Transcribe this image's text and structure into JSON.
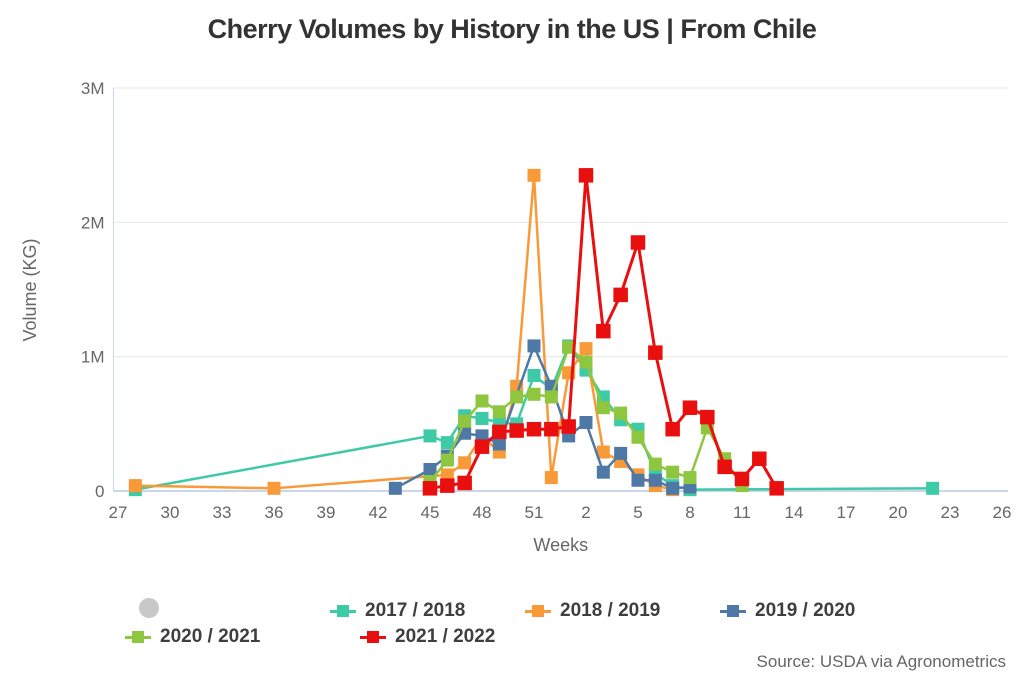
{
  "title": "Cherry Volumes by History in the US | From Chile",
  "source": "Source: USDA via Agronometrics",
  "colors": {
    "grid": "#e6e6e6",
    "axis_line": "#ccd6eb",
    "tick_text": "#666666",
    "title_text": "#333333",
    "legend_text": "#3f3f3f",
    "legend_placeholder": "#c8c8c8"
  },
  "chart_data": {
    "type": "line",
    "title": "Cherry Volumes by History in the US | From Chile",
    "xlabel": "Weeks",
    "ylabel": "Volume (KG)",
    "ylim": [
      0,
      3000000
    ],
    "grid": "horizontal",
    "legend_position": "bottom",
    "x_axis_week_order_start": 27,
    "x_tick_labels": [
      "27",
      "30",
      "33",
      "36",
      "39",
      "42",
      "45",
      "48",
      "51",
      "2",
      "5",
      "8",
      "11",
      "14",
      "17",
      "20",
      "23",
      "26"
    ],
    "y_ticks": [
      {
        "value": 0,
        "label": "0"
      },
      {
        "value": 1000000,
        "label": "1M"
      },
      {
        "value": 2000000,
        "label": "2M"
      },
      {
        "value": 3000000,
        "label": "3M"
      }
    ],
    "legend_placeholder": {
      "label": "",
      "shape": "circle",
      "color": "#c8c8c8"
    },
    "series": [
      {
        "name": "2017 / 2018",
        "color": "#3ec9a7",
        "marker": "square",
        "points": [
          [
            28,
            10000
          ],
          [
            45,
            410000
          ],
          [
            46,
            360000
          ],
          [
            47,
            560000
          ],
          [
            48,
            540000
          ],
          [
            49,
            510000
          ],
          [
            50,
            500000
          ],
          [
            51,
            860000
          ],
          [
            52,
            760000
          ],
          [
            1,
            1080000
          ],
          [
            2,
            900000
          ],
          [
            3,
            700000
          ],
          [
            4,
            530000
          ],
          [
            5,
            460000
          ],
          [
            6,
            130000
          ],
          [
            7,
            40000
          ],
          [
            8,
            10000
          ],
          [
            22,
            20000
          ]
        ]
      },
      {
        "name": "2018 / 2019",
        "color": "#f89a38",
        "marker": "square",
        "points": [
          [
            28,
            40000
          ],
          [
            36,
            20000
          ],
          [
            46,
            120000
          ],
          [
            47,
            210000
          ],
          [
            48,
            410000
          ],
          [
            49,
            290000
          ],
          [
            50,
            780000
          ],
          [
            51,
            2350000
          ],
          [
            52,
            100000
          ],
          [
            1,
            880000
          ],
          [
            2,
            1060000
          ],
          [
            3,
            290000
          ],
          [
            4,
            220000
          ],
          [
            5,
            120000
          ],
          [
            6,
            40000
          ],
          [
            7,
            10000
          ]
        ]
      },
      {
        "name": "2019 / 2020",
        "color": "#4e79a7",
        "marker": "square",
        "points": [
          [
            43,
            20000
          ],
          [
            45,
            160000
          ],
          [
            46,
            260000
          ],
          [
            47,
            430000
          ],
          [
            48,
            410000
          ],
          [
            49,
            350000
          ],
          [
            51,
            1080000
          ],
          [
            52,
            780000
          ],
          [
            1,
            410000
          ],
          [
            2,
            510000
          ],
          [
            3,
            140000
          ],
          [
            4,
            280000
          ],
          [
            5,
            80000
          ],
          [
            6,
            80000
          ],
          [
            7,
            20000
          ],
          [
            8,
            30000
          ]
        ]
      },
      {
        "name": "2020 / 2021",
        "color": "#8fc640",
        "marker": "square",
        "points": [
          [
            45,
            70000
          ],
          [
            46,
            230000
          ],
          [
            47,
            520000
          ],
          [
            48,
            670000
          ],
          [
            49,
            590000
          ],
          [
            50,
            700000
          ],
          [
            51,
            720000
          ],
          [
            52,
            700000
          ],
          [
            1,
            1070000
          ],
          [
            2,
            960000
          ],
          [
            3,
            620000
          ],
          [
            4,
            580000
          ],
          [
            5,
            400000
          ],
          [
            6,
            200000
          ],
          [
            7,
            140000
          ],
          [
            8,
            100000
          ],
          [
            9,
            470000
          ],
          [
            10,
            240000
          ],
          [
            11,
            40000
          ]
        ]
      },
      {
        "name": "2021 / 2022",
        "color": "#ea0f0f",
        "marker": "square",
        "points": [
          [
            45,
            20000
          ],
          [
            46,
            40000
          ],
          [
            47,
            60000
          ],
          [
            48,
            330000
          ],
          [
            49,
            440000
          ],
          [
            50,
            450000
          ],
          [
            51,
            460000
          ],
          [
            52,
            460000
          ],
          [
            1,
            480000
          ],
          [
            2,
            2350000
          ],
          [
            3,
            1190000
          ],
          [
            4,
            1460000
          ],
          [
            5,
            1850000
          ],
          [
            6,
            1030000
          ],
          [
            7,
            460000
          ],
          [
            8,
            620000
          ],
          [
            9,
            550000
          ],
          [
            10,
            180000
          ],
          [
            11,
            90000
          ],
          [
            12,
            240000
          ],
          [
            13,
            20000
          ]
        ]
      }
    ]
  }
}
